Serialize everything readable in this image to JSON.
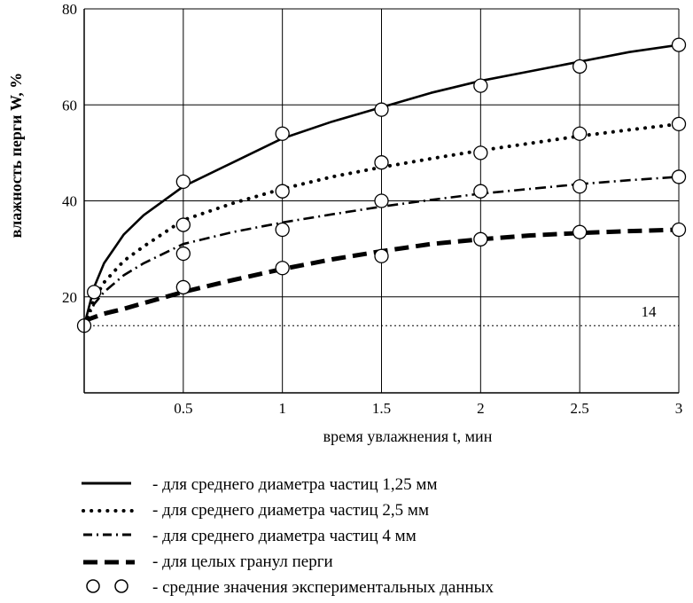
{
  "chart_data": {
    "type": "line",
    "xlabel": "время увлажнения  t, мин",
    "ylabel": "влажность перги  W, %",
    "xlim": [
      0,
      3
    ],
    "ylim": [
      0,
      80
    ],
    "x_ticks": [
      "0.5",
      "1",
      "1.5",
      "2",
      "2.5",
      "3"
    ],
    "y_ticks": [
      "20",
      "40",
      "60",
      "80"
    ],
    "grid": true,
    "reference_line": {
      "y": 14,
      "label": "14"
    },
    "series": [
      {
        "name": "для среднего диаметра частиц 1,25 мм",
        "style": "solid",
        "x": [
          0,
          0.05,
          0.1,
          0.2,
          0.3,
          0.5,
          0.75,
          1,
          1.25,
          1.5,
          1.75,
          2,
          2.25,
          2.5,
          2.75,
          3
        ],
        "y": [
          14,
          22,
          27,
          33,
          37,
          43,
          48,
          53,
          56.5,
          59.5,
          62.5,
          65,
          67,
          69,
          71,
          72.5
        ]
      },
      {
        "name": "для среднего диаметра частиц 2,5 мм",
        "style": "dotted",
        "x": [
          0,
          0.05,
          0.1,
          0.2,
          0.3,
          0.5,
          0.75,
          1,
          1.25,
          1.5,
          1.75,
          2,
          2.25,
          2.5,
          2.75,
          3
        ],
        "y": [
          14,
          19.5,
          23,
          27.5,
          30.5,
          36,
          39.5,
          42.5,
          45,
          47,
          48.8,
          50.5,
          52,
          53.5,
          54.8,
          56
        ]
      },
      {
        "name": "для среднего диаметра частиц 4 мм",
        "style": "dashdot",
        "x": [
          0,
          0.05,
          0.1,
          0.2,
          0.3,
          0.5,
          0.75,
          1,
          1.25,
          1.5,
          1.75,
          2,
          2.25,
          2.5,
          2.75,
          3
        ],
        "y": [
          14,
          18.5,
          21,
          24.5,
          27,
          31,
          33.5,
          35.5,
          37.2,
          38.8,
          40.2,
          41.5,
          42.5,
          43.5,
          44.3,
          45
        ]
      },
      {
        "name": "для целых гранул перги",
        "style": "dashed",
        "x": [
          0,
          0.1,
          0.2,
          0.3,
          0.5,
          0.75,
          1,
          1.25,
          1.5,
          1.75,
          2,
          2.25,
          2.5,
          2.75,
          3
        ],
        "y": [
          15,
          16.5,
          17.5,
          18.7,
          21,
          23.5,
          25.8,
          27.8,
          29.5,
          31,
          32,
          32.8,
          33.3,
          33.7,
          34
        ]
      },
      {
        "name": "средние значения экспериментальных данных",
        "style": "markers",
        "x": [
          0,
          0.05,
          0.5,
          0.5,
          0.5,
          0.5,
          1,
          1,
          1,
          1,
          1.5,
          1.5,
          1.5,
          1.5,
          2,
          2,
          2,
          2,
          2.5,
          2.5,
          2.5,
          2.5,
          3,
          3,
          3,
          3
        ],
        "y": [
          14,
          21,
          44,
          35,
          29,
          22,
          54,
          42,
          34,
          26,
          59,
          48,
          40,
          28.5,
          64,
          50,
          42,
          32,
          68,
          54,
          43,
          33.5,
          72.5,
          56,
          45,
          34
        ]
      }
    ]
  },
  "legend_entries": [
    "- для среднего диаметра частиц 1,25 мм",
    "- для среднего диаметра частиц 2,5 мм",
    "- для среднего диаметра частиц 4 мм",
    "- для целых гранул перги",
    "-  средние значения экспериментальных данных"
  ]
}
